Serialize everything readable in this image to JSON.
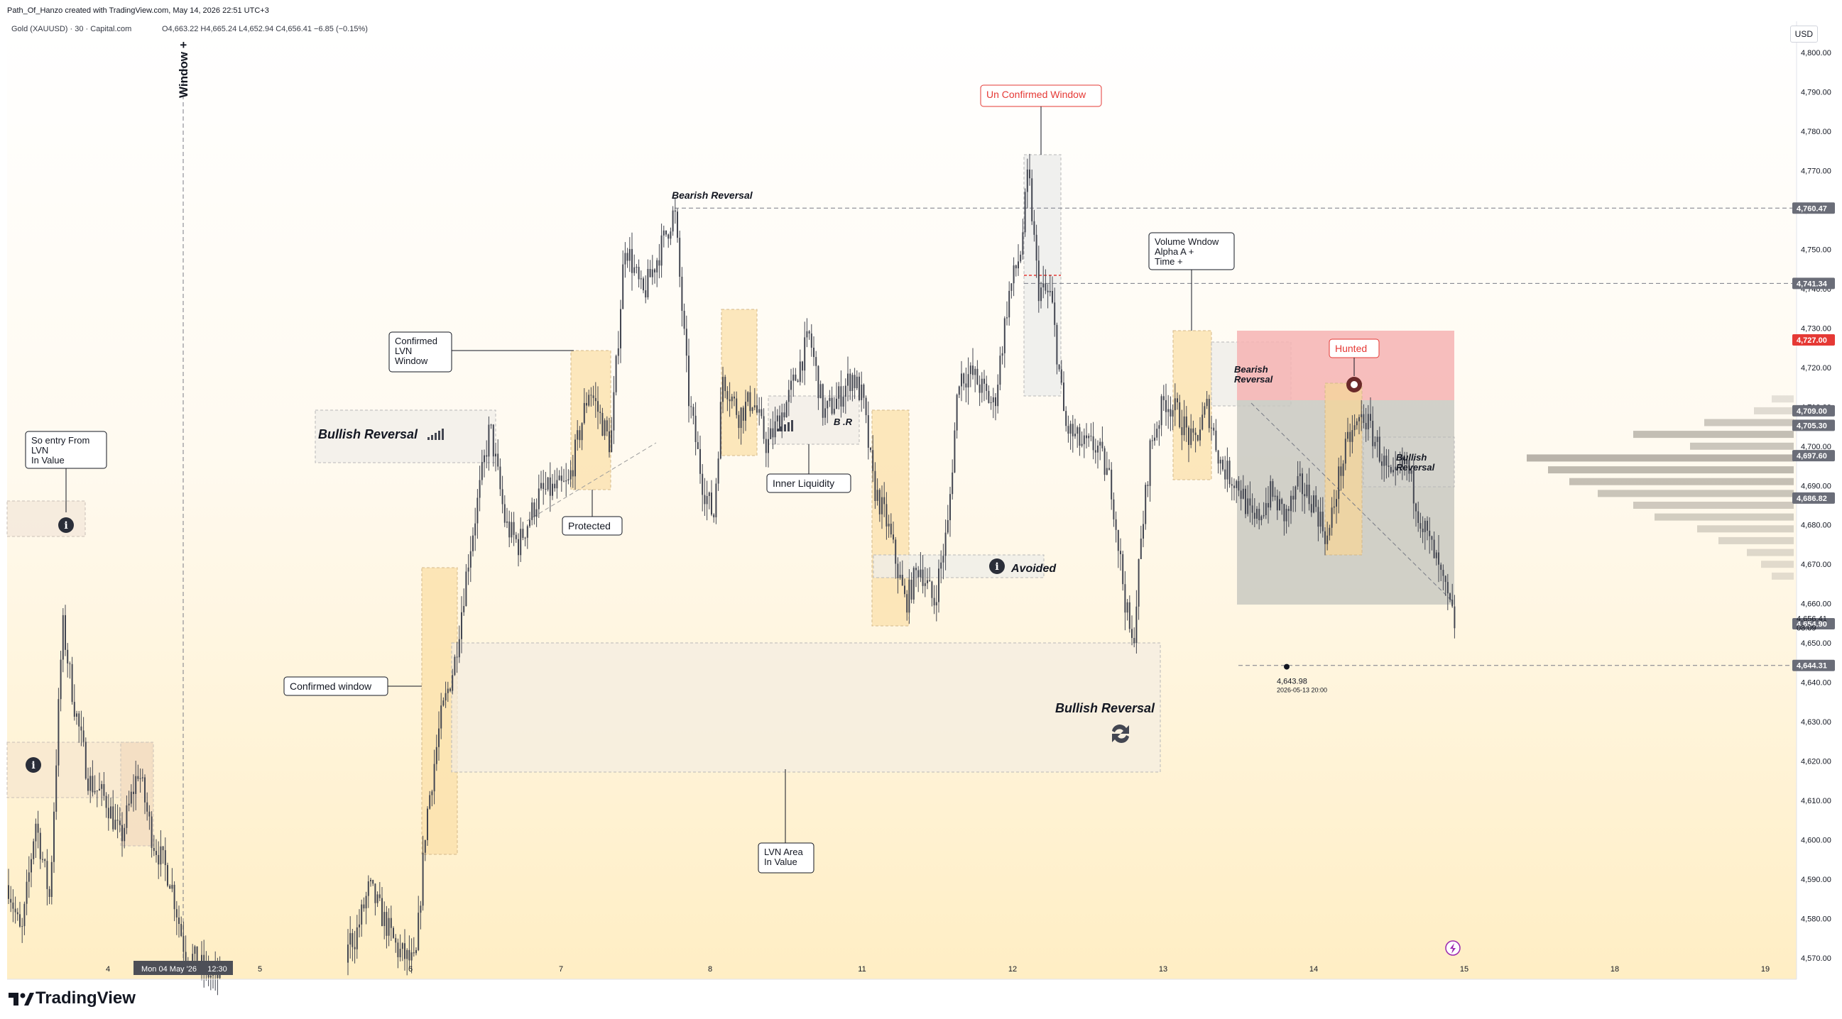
{
  "header": {
    "credit": "Path_Of_Hanzo created with TradingView.com, May 14, 2026 22:51 UTC+3",
    "symbol": "Gold (XAUUSD) · 30 · Capital.com",
    "ohlc": "O4,663.22 H4,665.24 L4,652.94 C4,656.41 −6.85 (−0.15%)"
  },
  "currency_label": "USD",
  "brand": "TradingView",
  "colors": {
    "candle": "#434651",
    "bg_top": "#ffffff",
    "bg_bottom": "#ffeec4",
    "red_zone": "#f6b3b3",
    "grey_zone": "#c7c7c0",
    "label_red": "#e53935"
  },
  "chart_data": {
    "type": "candlestick",
    "price_axis_ticks": [
      4800,
      4790,
      4780,
      4770,
      4760,
      4750,
      4740,
      4730,
      4720,
      4710,
      4700,
      4690,
      4680,
      4670,
      4660,
      4650,
      4640,
      4630,
      4620,
      4610,
      4600,
      4590,
      4580,
      4570
    ],
    "price_axis_tick_labels": [
      "4,800.00",
      "4,790.00",
      "4,780.00",
      "4,770.00",
      "4,760.00",
      "4,750.00",
      "4,740.00",
      "4,730.00",
      "4,720.00",
      "4,710.00",
      "4,700.00",
      "4,690.00",
      "4,680.00",
      "4,670.00",
      "4,660.00",
      "4,650.00",
      "4,640.00",
      "4,630.00",
      "4,620.00",
      "4,610.00",
      "4,600.00",
      "4,590.00",
      "4,580.00",
      "4,570.00"
    ],
    "price_range": [
      4565,
      4806
    ],
    "time_axis_labels": [
      "4",
      "Mon 04 May '26",
      "12:30",
      "5",
      "6",
      "7",
      "8",
      "11",
      "12",
      "13",
      "14",
      "15",
      "18",
      "19"
    ],
    "price_levels": [
      {
        "price": 4760.47,
        "label": "4,760.47"
      },
      {
        "price": 4741.34,
        "label": "4,741.34"
      },
      {
        "price": 4727.0,
        "label": "4,727.00"
      },
      {
        "price": 4709.0,
        "label": "4,709.00"
      },
      {
        "price": 4705.3,
        "label": "4,705.30"
      },
      {
        "price": 4697.6,
        "label": "4,697.60"
      },
      {
        "price": 4686.82,
        "label": "4,686.82"
      },
      {
        "price": 4656.41,
        "label": "4,656.41"
      },
      {
        "price": 4654.9,
        "label": "4,654.90"
      },
      {
        "price": 4644.31,
        "label": "4,644.31"
      }
    ],
    "last_price_label": "4,656.41",
    "countdown": "08:09",
    "low_marker": {
      "price": "4,643.98",
      "time": "2026-05-13 20:00"
    },
    "annotations": [
      "Window +",
      "Un Confirmed Window",
      "Bearish Reversal",
      "Volume Wndow\nAlpha A +\nTime +",
      "Confirmed\nLVN\nWindow",
      "Bullish Reversal",
      "So entry From\nLVN\nIn Value",
      "Protected",
      "Inner Liquidity",
      "B .R",
      "Avoided",
      "Hunted",
      "Bearish\nReversal",
      "Bullish\nReversal",
      "Confirmed window",
      "Bullish Reversal",
      "LVN Area\nIn Value"
    ]
  }
}
